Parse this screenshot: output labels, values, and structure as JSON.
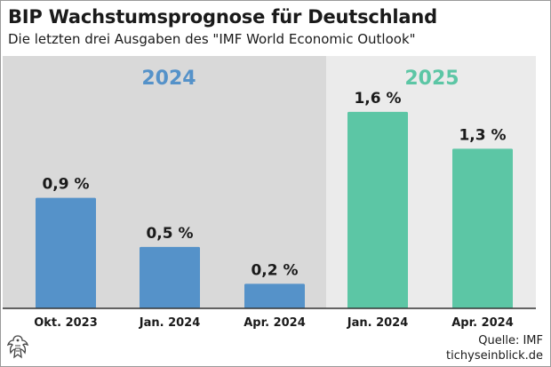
{
  "title": "BIP Wachstumsprognose für Deutschland",
  "subtitle": "Die letzten drei Ausgaben des \"IMF World Economic Outlook\"",
  "source_label": "Quelle: IMF",
  "brand": "tichyseinblick.de",
  "colors": {
    "group_2024": "#5592c9",
    "group_2025": "#5cc6a5",
    "panel_2024_bg": "#d9d9d9",
    "panel_2025_bg": "#ebebeb"
  },
  "chart_data": {
    "type": "bar",
    "groups": [
      {
        "label": "2024",
        "color": "#5592c9",
        "categories": [
          "Okt. 2023",
          "Jan. 2024",
          "Apr. 2024"
        ],
        "values": [
          0.9,
          0.5,
          0.2
        ],
        "value_labels": [
          "0,9 %",
          "0,5 %",
          "0,2 %"
        ]
      },
      {
        "label": "2025",
        "color": "#5cc6a5",
        "categories": [
          "Jan. 2024",
          "Apr. 2024"
        ],
        "values": [
          1.6,
          1.3
        ],
        "value_labels": [
          "1,6 %",
          "1,3 %"
        ]
      }
    ],
    "ylim": [
      0,
      1.78
    ],
    "unit": "%",
    "grid": false,
    "legend": "none"
  }
}
